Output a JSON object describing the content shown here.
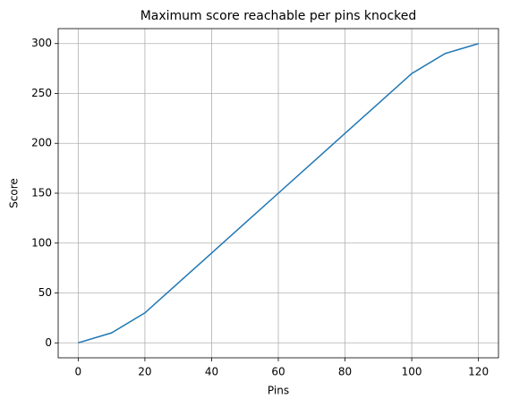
{
  "chart_data": {
    "type": "line",
    "title": "Maximum score reachable per pins knocked",
    "x_label": "Pins",
    "y_label": "Score",
    "x": [
      0,
      10,
      20,
      30,
      40,
      50,
      60,
      70,
      80,
      90,
      100,
      110,
      120
    ],
    "series": [
      {
        "name": "Score",
        "color": "#1f77b4",
        "values": [
          0,
          10,
          30,
          60,
          90,
          120,
          150,
          180,
          210,
          240,
          270,
          290,
          300
        ]
      }
    ],
    "xlim": [
      -6,
      126
    ],
    "ylim": [
      -15,
      315
    ],
    "xticks": [
      0,
      20,
      40,
      60,
      80,
      100,
      120
    ],
    "yticks": [
      0,
      50,
      100,
      150,
      200,
      250,
      300
    ],
    "grid": true
  }
}
